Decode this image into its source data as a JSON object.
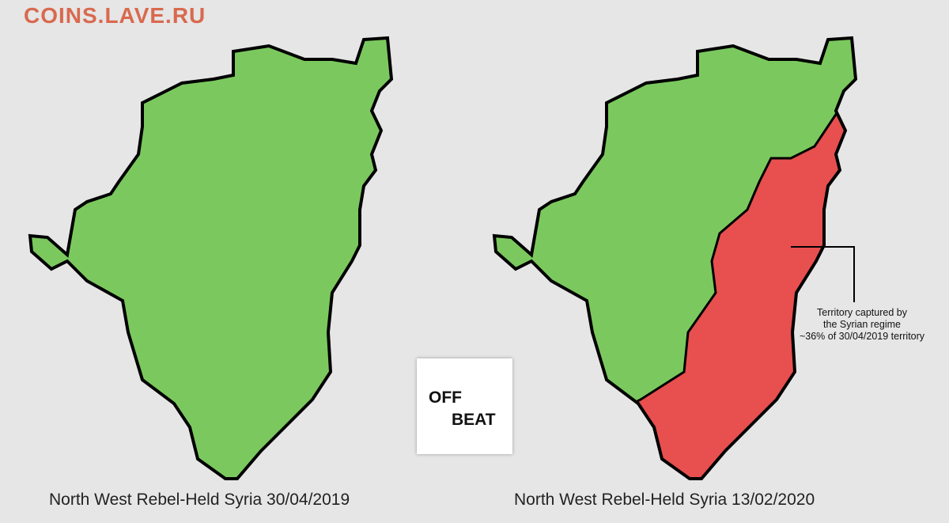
{
  "watermark": "COINS.LAVE.RU",
  "maps": [
    {
      "caption": "North West Rebel-Held Syria 30/04/2019",
      "regions": [
        {
          "name": "rebel-held",
          "color": "#7bc95e"
        }
      ]
    },
    {
      "caption": "North West Rebel-Held Syria 13/02/2020",
      "regions": [
        {
          "name": "rebel-held",
          "color": "#7bc95e"
        },
        {
          "name": "captured",
          "color": "#e84f4f",
          "share_percent": 36
        }
      ]
    }
  ],
  "annotation": {
    "line1": "Territory captured by",
    "line2": "the Syrian regime",
    "line3": "~36% of 30/04/2019 territory"
  },
  "logo": {
    "line1": "OFF",
    "line2": "BEAT"
  }
}
